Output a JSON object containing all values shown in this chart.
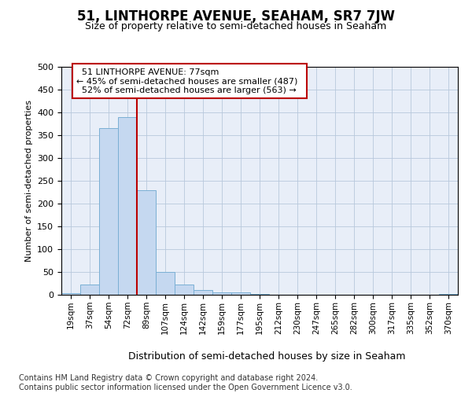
{
  "title": "51, LINTHORPE AVENUE, SEAHAM, SR7 7JW",
  "subtitle": "Size of property relative to semi-detached houses in Seaham",
  "xlabel": "Distribution of semi-detached houses by size in Seaham",
  "ylabel": "Number of semi-detached properties",
  "footer_line1": "Contains HM Land Registry data © Crown copyright and database right 2024.",
  "footer_line2": "Contains public sector information licensed under the Open Government Licence v3.0.",
  "annotation_line1": "51 LINTHORPE AVENUE: 77sqm",
  "annotation_line2": "← 45% of semi-detached houses are smaller (487)",
  "annotation_line3": "52% of semi-detached houses are larger (563) →",
  "bin_labels": [
    "19sqm",
    "37sqm",
    "54sqm",
    "72sqm",
    "89sqm",
    "107sqm",
    "124sqm",
    "142sqm",
    "159sqm",
    "177sqm",
    "195sqm",
    "212sqm",
    "230sqm",
    "247sqm",
    "265sqm",
    "282sqm",
    "300sqm",
    "317sqm",
    "335sqm",
    "352sqm",
    "370sqm"
  ],
  "bar_values": [
    3,
    22,
    365,
    390,
    230,
    50,
    22,
    10,
    5,
    5,
    2,
    0,
    0,
    0,
    0,
    0,
    0,
    0,
    0,
    0,
    2
  ],
  "bar_color": "#c5d8f0",
  "bar_edge_color": "#7aafd4",
  "vline_x": 3.5,
  "vline_color": "#bb0000",
  "ylim": [
    0,
    500
  ],
  "yticks": [
    0,
    50,
    100,
    150,
    200,
    250,
    300,
    350,
    400,
    450,
    500
  ],
  "annotation_box_edgecolor": "#bb0000",
  "plot_bg_color": "#e8eef8",
  "grid_color": "#b8c8dc",
  "title_fontsize": 12,
  "subtitle_fontsize": 9,
  "ylabel_fontsize": 8,
  "xlabel_fontsize": 9,
  "tick_fontsize": 7.5,
  "ytick_fontsize": 8,
  "footer_fontsize": 7,
  "annot_fontsize": 8
}
